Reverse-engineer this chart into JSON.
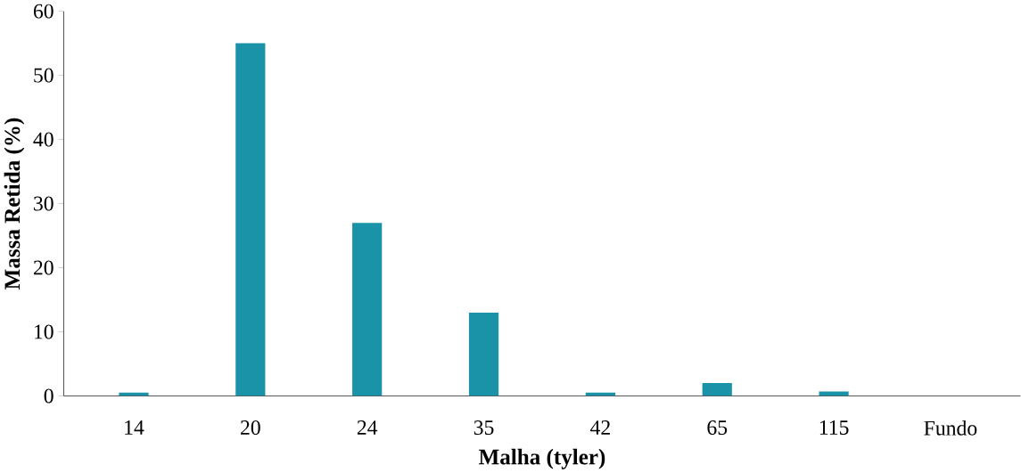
{
  "chart_data": {
    "type": "bar",
    "xlabel": "Malha (tyler)",
    "ylabel": "Massa Retida (%)",
    "categories": [
      "14",
      "20",
      "24",
      "35",
      "42",
      "65",
      "115",
      "Fundo"
    ],
    "values": [
      0.5,
      55,
      27,
      13,
      0.5,
      2,
      0.7,
      0
    ],
    "color": "#1a93a8",
    "ylim": [
      0,
      60
    ],
    "yticks": [
      0,
      10,
      20,
      30,
      40,
      50,
      60
    ],
    "grid": false
  }
}
